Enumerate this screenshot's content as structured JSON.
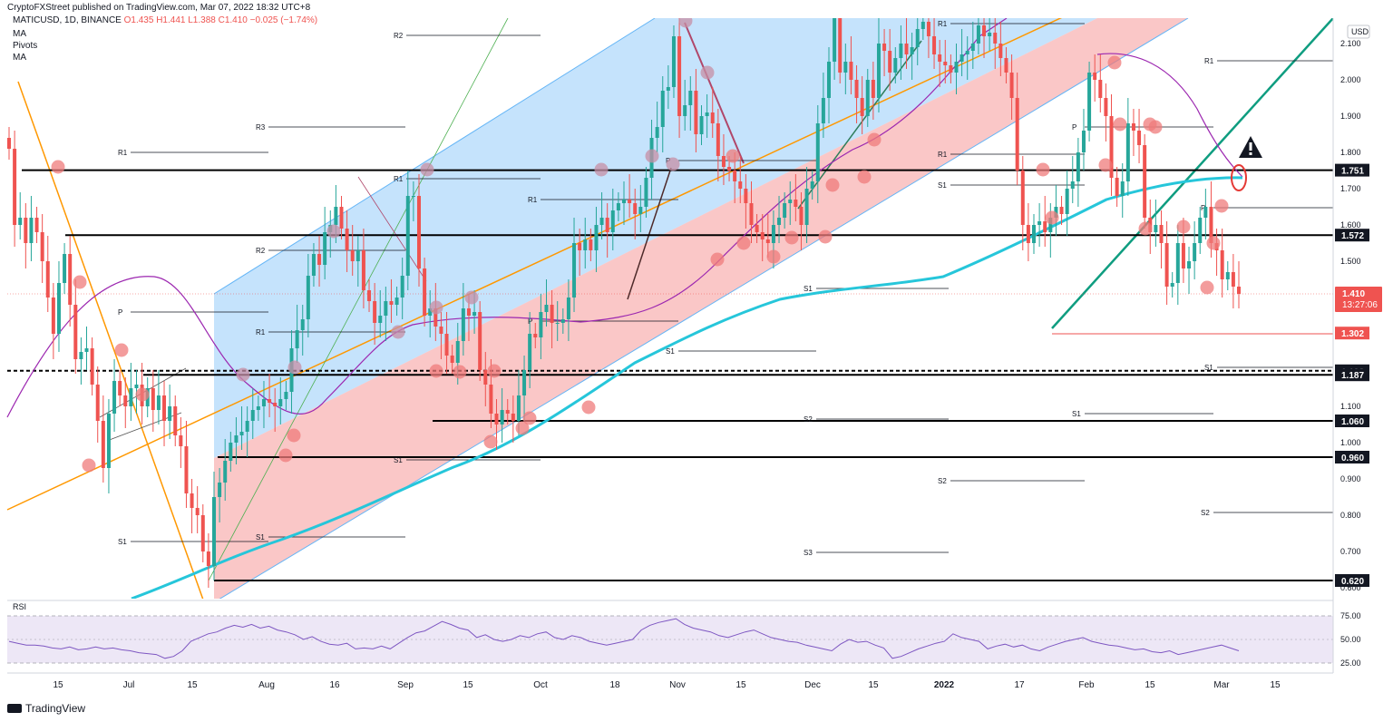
{
  "header": {
    "published": "CryptoFXStreet published on TradingView.com, Mar 07, 2022 18:32 UTC+8",
    "symbol": "MATICUSD, 1D, BINANCE",
    "ohlc": "O1.435  H1.441  L1.388  C1.410  −0.025 (−1.74%)",
    "indicators": [
      "MA",
      "Pivots",
      "MA"
    ]
  },
  "branding": "TradingView",
  "currency": "USD",
  "rsi_label": "RSI",
  "chart_data": {
    "type": "candlestick",
    "title": "",
    "symbol": "MATICUSD",
    "price_axis": {
      "ticks": [
        "2.100",
        "2.000",
        "1.900",
        "1.800",
        "1.700",
        "1.600",
        "1.500",
        "1.400",
        "1.300",
        "1.200",
        "1.100",
        "1.000",
        "0.900",
        "0.800",
        "0.700",
        "0.600"
      ],
      "tick_values": [
        2.1,
        2.0,
        1.9,
        1.8,
        1.7,
        1.6,
        1.5,
        1.4,
        1.3,
        1.2,
        1.1,
        1.0,
        0.9,
        0.8,
        0.7,
        0.6
      ]
    },
    "time_axis": {
      "ticks": [
        "15",
        "Jul",
        "15",
        "Aug",
        "16",
        "Sep",
        "15",
        "Oct",
        "18",
        "Nov",
        "15",
        "Dec",
        "15",
        "2022",
        "17",
        "Feb",
        "15",
        "Mar",
        "15"
      ]
    },
    "last_price": {
      "value": 1.41,
      "label": "1.410",
      "countdown": "13:27:06"
    },
    "horizontal_levels": [
      {
        "label": "1.751",
        "value": 1.751
      },
      {
        "label": "1.572",
        "value": 1.572
      },
      {
        "label": "1.302",
        "value": 1.302
      },
      {
        "label": "1.198",
        "value": 1.198
      },
      {
        "label": "1.187",
        "value": 1.187
      },
      {
        "label": "1.060",
        "value": 1.06
      },
      {
        "label": "0.960",
        "value": 0.96
      },
      {
        "label": "0.620",
        "value": 0.62
      }
    ],
    "pivot_labels": [
      "R2",
      "R3",
      "R1",
      "R1",
      "R1",
      "R2",
      "P",
      "R1",
      "R1",
      "P",
      "S1",
      "S1",
      "R1",
      "P",
      "S1",
      "S1",
      "S2",
      "S3",
      "S1",
      "S2",
      "S1",
      "R1",
      "P",
      "P",
      "S1",
      "S2",
      "S1"
    ],
    "rsi": {
      "levels": [
        75,
        50,
        25
      ],
      "tick_labels": [
        "75.00",
        "50.00",
        "25.00"
      ],
      "values": [
        48,
        46,
        44,
        44,
        43,
        41,
        40,
        42,
        39,
        40,
        42,
        40,
        41,
        39,
        38,
        36,
        35,
        34,
        30,
        32,
        38,
        48,
        52,
        56,
        58,
        62,
        65,
        63,
        66,
        62,
        64,
        60,
        58,
        55,
        50,
        53,
        48,
        45,
        44,
        46,
        40,
        41,
        40,
        43,
        40,
        46,
        52,
        57,
        59,
        64,
        69,
        66,
        62,
        60,
        52,
        55,
        50,
        48,
        50,
        54,
        52,
        56,
        58,
        52,
        50,
        54,
        52,
        48,
        46,
        44,
        46,
        48,
        50,
        60,
        65,
        68,
        70,
        72,
        66,
        62,
        60,
        58,
        54,
        52,
        55,
        58,
        60,
        56,
        52,
        50,
        48,
        47,
        44,
        42,
        40,
        38,
        45,
        50,
        47,
        48,
        44,
        41,
        30,
        32,
        36,
        40,
        43,
        46,
        48,
        56,
        52,
        50,
        48,
        40,
        43,
        45,
        42,
        44,
        40,
        38,
        42,
        45,
        48,
        50,
        52,
        48,
        46,
        44,
        43,
        41,
        39,
        40,
        37,
        36,
        38,
        34,
        36,
        38,
        40,
        42,
        44,
        41,
        38
      ]
    },
    "candles_approx_close": [
      1.81,
      1.6,
      1.62,
      1.55,
      1.62,
      1.58,
      1.5,
      1.4,
      1.3,
      1.44,
      1.52,
      1.38,
      1.23,
      1.25,
      1.26,
      1.16,
      1.06,
      0.93,
      1.08,
      1.17,
      1.13,
      1.1,
      1.15,
      1.16,
      1.1,
      1.15,
      1.09,
      1.13,
      1.06,
      1.1,
      1.02,
      0.99,
      0.86,
      0.82,
      0.8,
      0.7,
      0.66,
      0.85,
      0.89,
      0.95,
      1.0,
      1.02,
      1.03,
      1.06,
      1.09,
      1.1,
      1.12,
      1.11,
      1.1,
      1.12,
      1.14,
      1.26,
      1.31,
      1.34,
      1.46,
      1.52,
      1.49,
      1.58,
      1.6,
      1.65,
      1.59,
      1.53,
      1.5,
      1.53,
      1.42,
      1.39,
      1.33,
      1.35,
      1.39,
      1.38,
      1.4,
      1.46,
      1.68,
      1.68,
      1.48,
      1.35,
      1.37,
      1.32,
      1.3,
      1.24,
      1.22,
      1.28,
      1.37,
      1.35,
      1.36,
      1.2,
      1.16,
      1.08,
      1.05,
      1.09,
      1.08,
      1.06,
      1.13,
      1.2,
      1.3,
      1.29,
      1.36,
      1.38,
      1.33,
      1.33,
      1.34,
      1.4,
      1.55,
      1.53,
      1.56,
      1.53,
      1.6,
      1.62,
      1.58,
      1.64,
      1.66,
      1.67,
      1.66,
      1.63,
      1.65,
      1.73,
      1.84,
      1.87,
      1.97,
      1.98,
      2.12,
      1.9,
      1.93,
      1.97,
      1.85,
      1.9,
      1.91,
      1.88,
      1.79,
      1.76,
      1.75,
      1.72,
      1.7,
      1.66,
      1.6,
      1.58,
      1.56,
      1.55,
      1.6,
      1.62,
      1.66,
      1.67,
      1.65,
      1.6,
      1.7,
      1.72,
      1.88,
      1.95,
      2.05,
      2.18,
      2.02,
      2.05,
      2.0,
      1.95,
      1.9,
      2.0,
      1.95,
      2.1,
      2.08,
      2.02,
      2.06,
      2.1,
      2.07,
      2.09,
      2.14,
      2.16,
      2.12,
      2.07,
      2.05,
      2.04,
      2.02,
      2.05,
      2.07,
      2.08,
      2.1,
      2.15,
      2.12,
      2.13,
      2.1,
      2.06,
      2.02,
      1.95,
      1.75,
      1.6,
      1.55,
      1.6,
      1.61,
      1.58,
      1.62,
      1.65,
      1.63,
      1.7,
      1.72,
      1.8,
      1.86,
      2.02,
      2.0,
      1.95,
      1.9,
      1.73,
      1.68,
      1.72,
      1.88,
      1.86,
      1.82,
      1.62,
      1.58,
      1.6,
      1.55,
      1.43,
      1.44,
      1.55,
      1.48,
      1.5,
      1.55,
      1.62,
      1.65,
      1.55,
      1.53,
      1.45,
      1.47,
      1.43,
      1.41
    ]
  }
}
